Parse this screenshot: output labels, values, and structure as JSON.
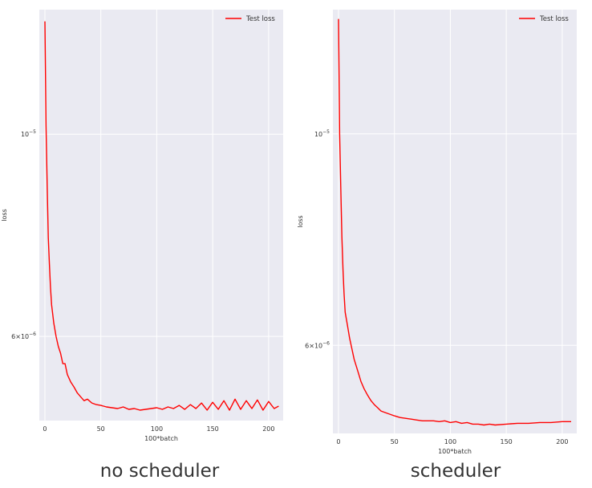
{
  "chart_data": [
    {
      "type": "line",
      "caption": "no scheduler",
      "xlabel": "100*batch",
      "ylabel": "loss",
      "yscale": "log",
      "xlim": [
        -5,
        213
      ],
      "ylim": [
        4.85e-06,
        1.37e-05
      ],
      "xticks": [
        0,
        50,
        100,
        150,
        200
      ],
      "yticks": [
        {
          "value": 1e-05,
          "base": "10",
          "exp": "−5"
        },
        {
          "value": 6e-06,
          "base": "6×10",
          "exp": "−6"
        }
      ],
      "grid": true,
      "legend_position": "top-right",
      "series": [
        {
          "name": "Test loss",
          "color": "#ff0000",
          "x": [
            0,
            1,
            2,
            3,
            4,
            5,
            6,
            8,
            10,
            12,
            14,
            16,
            18,
            20,
            23,
            26,
            29,
            32,
            35,
            38,
            42,
            46,
            50,
            55,
            60,
            65,
            70,
            75,
            80,
            85,
            90,
            95,
            100,
            105,
            110,
            115,
            120,
            125,
            130,
            135,
            140,
            145,
            150,
            155,
            160,
            165,
            170,
            175,
            180,
            185,
            190,
            195,
            200,
            205,
            209
          ],
          "y": [
            1.33e-05,
            1.02e-05,
            8.8e-06,
            7.7e-06,
            7.2e-06,
            6.8e-06,
            6.5e-06,
            6.2e-06,
            6e-06,
            5.85e-06,
            5.75e-06,
            5.6e-06,
            5.6e-06,
            5.45e-06,
            5.35e-06,
            5.28e-06,
            5.2e-06,
            5.15e-06,
            5.1e-06,
            5.12e-06,
            5.07e-06,
            5.05e-06,
            5.04e-06,
            5.02e-06,
            5.01e-06,
            5e-06,
            5.02e-06,
            4.99e-06,
            5e-06,
            4.98e-06,
            4.99e-06,
            5e-06,
            5.01e-06,
            4.99e-06,
            5.02e-06,
            5e-06,
            5.04e-06,
            4.99e-06,
            5.05e-06,
            5e-06,
            5.07e-06,
            4.98e-06,
            5.08e-06,
            4.99e-06,
            5.1e-06,
            4.98e-06,
            5.12e-06,
            4.99e-06,
            5.1e-06,
            5e-06,
            5.11e-06,
            4.98e-06,
            5.09e-06,
            5e-06,
            5.03e-06
          ]
        }
      ]
    },
    {
      "type": "line",
      "caption": "scheduler",
      "xlabel": "100*batch",
      "ylabel": "loss",
      "yscale": "log",
      "xlim": [
        -5,
        213
      ],
      "ylim": [
        4.85e-06,
        1.35e-05
      ],
      "xticks": [
        0,
        50,
        100,
        150,
        200
      ],
      "yticks": [
        {
          "value": 1e-05,
          "base": "10",
          "exp": "−5"
        },
        {
          "value": 6e-06,
          "base": "6×10",
          "exp": "−6"
        }
      ],
      "grid": true,
      "legend_position": "top-right",
      "series": [
        {
          "name": "Test loss",
          "color": "#ff0000",
          "x": [
            0,
            1,
            2,
            3,
            4,
            5,
            6,
            8,
            10,
            12,
            14,
            16,
            18,
            20,
            23,
            26,
            29,
            32,
            35,
            38,
            42,
            46,
            50,
            55,
            60,
            65,
            70,
            75,
            80,
            85,
            90,
            95,
            100,
            105,
            110,
            115,
            120,
            125,
            130,
            135,
            140,
            150,
            160,
            170,
            180,
            190,
            200,
            208
          ],
          "y": [
            1.32e-05,
            1e-05,
            8.8e-06,
            7.8e-06,
            7.2e-06,
            6.8e-06,
            6.5e-06,
            6.3e-06,
            6.1e-06,
            5.95e-06,
            5.8e-06,
            5.7e-06,
            5.6e-06,
            5.5e-06,
            5.4e-06,
            5.32e-06,
            5.25e-06,
            5.2e-06,
            5.16e-06,
            5.12e-06,
            5.1e-06,
            5.08e-06,
            5.06e-06,
            5.04e-06,
            5.03e-06,
            5.02e-06,
            5.01e-06,
            5e-06,
            5e-06,
            5e-06,
            4.99e-06,
            5e-06,
            4.98e-06,
            4.99e-06,
            4.97e-06,
            4.98e-06,
            4.96e-06,
            4.96e-06,
            4.95e-06,
            4.96e-06,
            4.95e-06,
            4.96e-06,
            4.97e-06,
            4.97e-06,
            4.98e-06,
            4.98e-06,
            4.99e-06,
            4.99e-06
          ]
        }
      ]
    }
  ]
}
